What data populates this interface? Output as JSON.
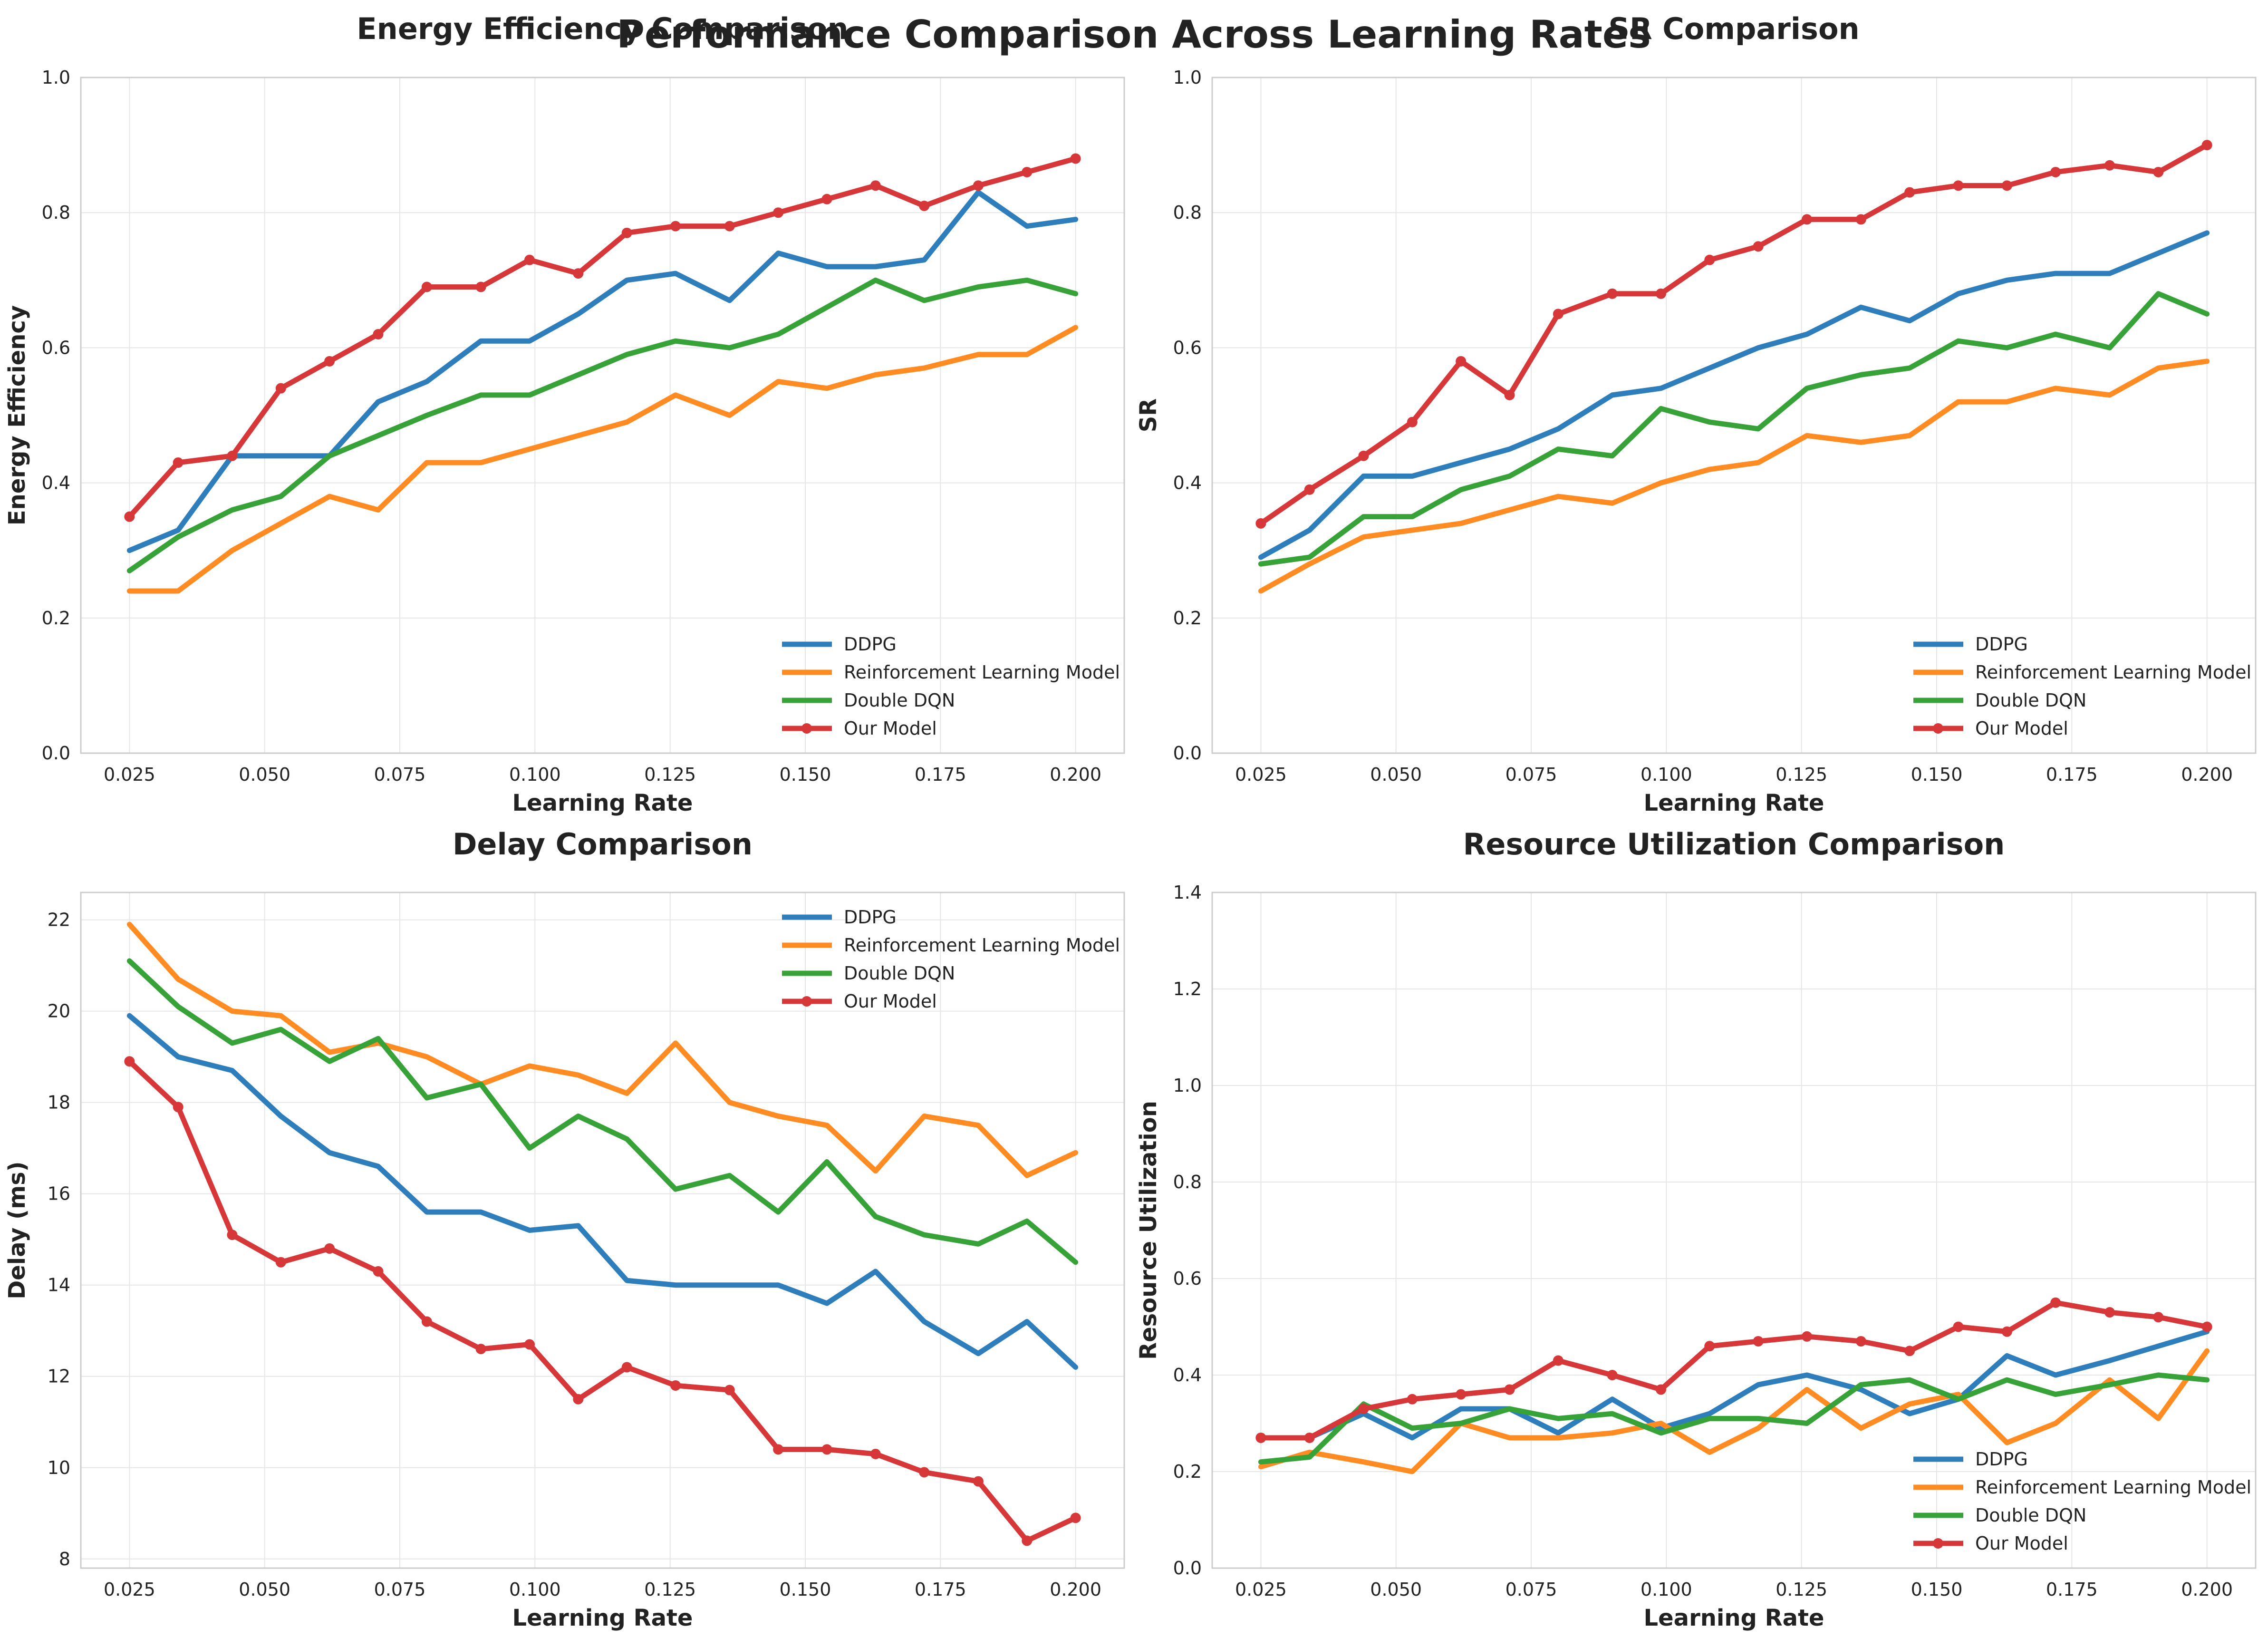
{
  "figure": {
    "title": "Performance Comparison Across Learning Rates"
  },
  "series_colors": {
    "DDPG": "#2e7ebc",
    "Reinforcement Learning Model": "#ff8b23",
    "Double DQN": "#37a237",
    "Our Model": "#d6383a"
  },
  "chart_data": [
    {
      "type": "line",
      "title": "Energy Efficiency Comparison",
      "xlabel": "Learning Rate",
      "ylabel": "Energy Efficiency",
      "xlim": [
        0.016,
        0.209
      ],
      "ylim": [
        0.0,
        1.0
      ],
      "xticks": [
        0.025,
        0.05,
        0.075,
        0.1,
        0.125,
        0.15,
        0.175,
        0.2
      ],
      "xtick_labels": [
        "0.025",
        "0.050",
        "0.075",
        "0.100",
        "0.125",
        "0.150",
        "0.175",
        "0.200"
      ],
      "yticks": [
        0.0,
        0.2,
        0.4,
        0.6,
        0.8,
        1.0
      ],
      "ytick_labels": [
        "0.0",
        "0.2",
        "0.4",
        "0.6",
        "0.8",
        "1.0"
      ],
      "grid": true,
      "legend_position": "lower-right",
      "x": [
        0.025,
        0.034,
        0.044,
        0.053,
        0.062,
        0.071,
        0.08,
        0.09,
        0.099,
        0.108,
        0.117,
        0.126,
        0.136,
        0.145,
        0.154,
        0.163,
        0.172,
        0.182,
        0.191,
        0.2
      ],
      "series": [
        {
          "name": "DDPG",
          "values": [
            0.3,
            0.33,
            0.44,
            0.44,
            0.44,
            0.52,
            0.55,
            0.61,
            0.61,
            0.65,
            0.7,
            0.71,
            0.67,
            0.74,
            0.72,
            0.72,
            0.73,
            0.83,
            0.78,
            0.79
          ]
        },
        {
          "name": "Reinforcement Learning Model",
          "values": [
            0.24,
            0.24,
            0.3,
            0.34,
            0.38,
            0.36,
            0.43,
            0.43,
            0.45,
            0.47,
            0.49,
            0.53,
            0.5,
            0.55,
            0.54,
            0.56,
            0.57,
            0.59,
            0.59,
            0.63
          ]
        },
        {
          "name": "Double DQN",
          "values": [
            0.27,
            0.32,
            0.36,
            0.38,
            0.44,
            0.47,
            0.5,
            0.53,
            0.53,
            0.56,
            0.59,
            0.61,
            0.6,
            0.62,
            0.66,
            0.7,
            0.67,
            0.69,
            0.7,
            0.68
          ]
        },
        {
          "name": "Our Model",
          "values": [
            0.35,
            0.43,
            0.44,
            0.54,
            0.58,
            0.62,
            0.69,
            0.69,
            0.73,
            0.71,
            0.77,
            0.78,
            0.78,
            0.8,
            0.82,
            0.84,
            0.81,
            0.84,
            0.86,
            0.88
          ]
        }
      ]
    },
    {
      "type": "line",
      "title": "SR Comparison",
      "xlabel": "Learning Rate",
      "ylabel": "SR",
      "xlim": [
        0.016,
        0.209
      ],
      "ylim": [
        0.0,
        1.0
      ],
      "xticks": [
        0.025,
        0.05,
        0.075,
        0.1,
        0.125,
        0.15,
        0.175,
        0.2
      ],
      "xtick_labels": [
        "0.025",
        "0.050",
        "0.075",
        "0.100",
        "0.125",
        "0.150",
        "0.175",
        "0.200"
      ],
      "yticks": [
        0.0,
        0.2,
        0.4,
        0.6,
        0.8,
        1.0
      ],
      "ytick_labels": [
        "0.0",
        "0.2",
        "0.4",
        "0.6",
        "0.8",
        "1.0"
      ],
      "grid": true,
      "legend_position": "lower-right",
      "x": [
        0.025,
        0.034,
        0.044,
        0.053,
        0.062,
        0.071,
        0.08,
        0.09,
        0.099,
        0.108,
        0.117,
        0.126,
        0.136,
        0.145,
        0.154,
        0.163,
        0.172,
        0.182,
        0.191,
        0.2
      ],
      "series": [
        {
          "name": "DDPG",
          "values": [
            0.29,
            0.33,
            0.41,
            0.41,
            0.43,
            0.45,
            0.48,
            0.53,
            0.54,
            0.57,
            0.6,
            0.62,
            0.66,
            0.64,
            0.68,
            0.7,
            0.71,
            0.71,
            0.74,
            0.77
          ]
        },
        {
          "name": "Reinforcement Learning Model",
          "values": [
            0.24,
            0.28,
            0.32,
            0.33,
            0.34,
            0.36,
            0.38,
            0.37,
            0.4,
            0.42,
            0.43,
            0.47,
            0.46,
            0.47,
            0.52,
            0.52,
            0.54,
            0.53,
            0.57,
            0.58
          ]
        },
        {
          "name": "Double DQN",
          "values": [
            0.28,
            0.29,
            0.35,
            0.35,
            0.39,
            0.41,
            0.45,
            0.44,
            0.51,
            0.49,
            0.48,
            0.54,
            0.56,
            0.57,
            0.61,
            0.6,
            0.62,
            0.6,
            0.68,
            0.65
          ]
        },
        {
          "name": "Our Model",
          "values": [
            0.34,
            0.39,
            0.44,
            0.49,
            0.58,
            0.53,
            0.65,
            0.68,
            0.68,
            0.73,
            0.75,
            0.79,
            0.79,
            0.83,
            0.84,
            0.84,
            0.86,
            0.87,
            0.86,
            0.9
          ]
        }
      ]
    },
    {
      "type": "line",
      "title": "Delay Comparison",
      "xlabel": "Learning Rate",
      "ylabel": "Delay (ms)",
      "xlim": [
        0.016,
        0.209
      ],
      "ylim": [
        7.8,
        22.6
      ],
      "xticks": [
        0.025,
        0.05,
        0.075,
        0.1,
        0.125,
        0.15,
        0.175,
        0.2
      ],
      "xtick_labels": [
        "0.025",
        "0.050",
        "0.075",
        "0.100",
        "0.125",
        "0.150",
        "0.175",
        "0.200"
      ],
      "yticks": [
        8,
        10,
        12,
        14,
        16,
        18,
        20,
        22
      ],
      "ytick_labels": [
        "8",
        "10",
        "12",
        "14",
        "16",
        "18",
        "20",
        "22"
      ],
      "grid": true,
      "legend_position": "upper-right",
      "x": [
        0.025,
        0.034,
        0.044,
        0.053,
        0.062,
        0.071,
        0.08,
        0.09,
        0.099,
        0.108,
        0.117,
        0.126,
        0.136,
        0.145,
        0.154,
        0.163,
        0.172,
        0.182,
        0.191,
        0.2
      ],
      "series": [
        {
          "name": "DDPG",
          "values": [
            19.9,
            19.0,
            18.7,
            17.7,
            16.9,
            16.6,
            15.6,
            15.6,
            15.2,
            15.3,
            14.1,
            14.0,
            14.0,
            14.0,
            13.6,
            14.3,
            13.2,
            12.5,
            13.2,
            12.2
          ]
        },
        {
          "name": "Reinforcement Learning Model",
          "values": [
            21.9,
            20.7,
            20.0,
            19.9,
            19.1,
            19.3,
            19.0,
            18.4,
            18.8,
            18.6,
            18.2,
            19.3,
            18.0,
            17.7,
            17.5,
            16.5,
            17.7,
            17.5,
            16.4,
            16.9
          ]
        },
        {
          "name": "Double DQN",
          "values": [
            21.1,
            20.1,
            19.3,
            19.6,
            18.9,
            19.4,
            18.1,
            18.4,
            17.0,
            17.7,
            17.2,
            16.1,
            16.4,
            15.6,
            16.7,
            15.5,
            15.1,
            14.9,
            15.4,
            14.5
          ]
        },
        {
          "name": "Our Model",
          "values": [
            18.9,
            17.9,
            15.1,
            14.5,
            14.8,
            14.3,
            13.2,
            12.6,
            12.7,
            11.5,
            12.2,
            11.8,
            11.7,
            10.4,
            10.4,
            10.3,
            9.9,
            9.7,
            8.4,
            8.9
          ]
        }
      ]
    },
    {
      "type": "line",
      "title": "Resource Utilization Comparison",
      "xlabel": "Learning Rate",
      "ylabel": "Resource Utilization",
      "xlim": [
        0.016,
        0.209
      ],
      "ylim": [
        0.0,
        1.4
      ],
      "xticks": [
        0.025,
        0.05,
        0.075,
        0.1,
        0.125,
        0.15,
        0.175,
        0.2
      ],
      "xtick_labels": [
        "0.025",
        "0.050",
        "0.075",
        "0.100",
        "0.125",
        "0.150",
        "0.175",
        "0.200"
      ],
      "yticks": [
        0.0,
        0.2,
        0.4,
        0.6,
        0.8,
        1.0,
        1.2,
        1.4
      ],
      "ytick_labels": [
        "0.0",
        "0.2",
        "0.4",
        "0.6",
        "0.8",
        "1.0",
        "1.2",
        "1.4"
      ],
      "grid": true,
      "legend_position": "lower-right",
      "x": [
        0.025,
        0.034,
        0.044,
        0.053,
        0.062,
        0.071,
        0.08,
        0.09,
        0.099,
        0.108,
        0.117,
        0.126,
        0.136,
        0.145,
        0.154,
        0.163,
        0.172,
        0.182,
        0.191,
        0.2
      ],
      "series": [
        {
          "name": "DDPG",
          "values": [
            0.27,
            0.27,
            0.32,
            0.27,
            0.33,
            0.33,
            0.28,
            0.35,
            0.29,
            0.32,
            0.38,
            0.4,
            0.37,
            0.32,
            0.35,
            0.44,
            0.4,
            0.43,
            0.46,
            0.49
          ]
        },
        {
          "name": "Reinforcement Learning Model",
          "values": [
            0.21,
            0.24,
            0.22,
            0.2,
            0.3,
            0.27,
            0.27,
            0.28,
            0.3,
            0.24,
            0.29,
            0.37,
            0.29,
            0.34,
            0.36,
            0.26,
            0.3,
            0.39,
            0.31,
            0.45
          ]
        },
        {
          "name": "Double DQN",
          "values": [
            0.22,
            0.23,
            0.34,
            0.29,
            0.3,
            0.33,
            0.31,
            0.32,
            0.28,
            0.31,
            0.31,
            0.3,
            0.38,
            0.39,
            0.35,
            0.39,
            0.36,
            0.38,
            0.4,
            0.39
          ]
        },
        {
          "name": "Our Model",
          "values": [
            0.27,
            0.27,
            0.33,
            0.35,
            0.36,
            0.37,
            0.43,
            0.4,
            0.37,
            0.46,
            0.47,
            0.48,
            0.47,
            0.45,
            0.5,
            0.49,
            0.55,
            0.53,
            0.52,
            0.5
          ]
        }
      ]
    }
  ]
}
